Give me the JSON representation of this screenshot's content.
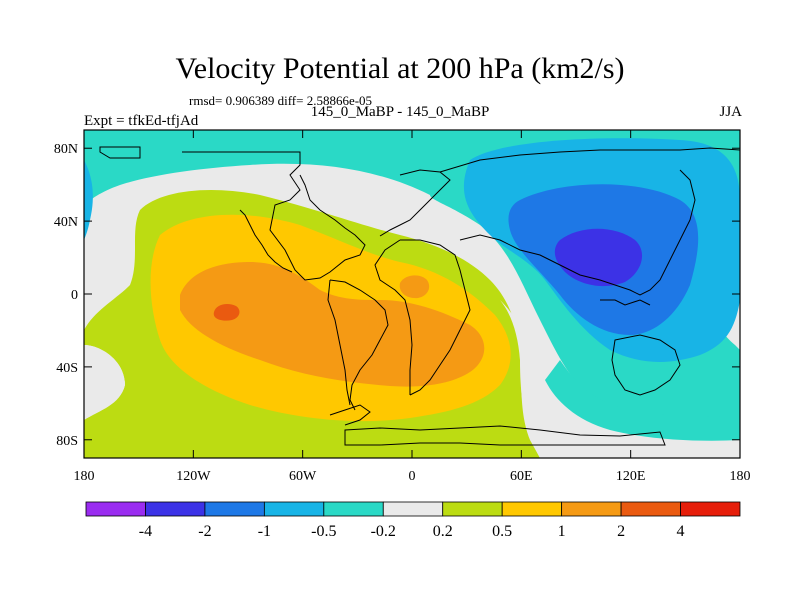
{
  "map": {
    "title": "Velocity Potential at 200 hPa (km2/s)",
    "stats": "rmsd= 0.906389 diff= 2.58866e-05",
    "left_string": "Expt = tfkEd-tfjAd",
    "center_string": "145_0_MaBP - 145_0_MaBP",
    "right_string": "JJA",
    "projection": "cylindrical-equidistant",
    "lon_range": [
      -180,
      180
    ],
    "lat_range": [
      -90,
      90
    ],
    "x_ticks": [
      {
        "lon": -180,
        "label": "180"
      },
      {
        "lon": -120,
        "label": "120W"
      },
      {
        "lon": -60,
        "label": "60W"
      },
      {
        "lon": 0,
        "label": "0"
      },
      {
        "lon": 60,
        "label": "60E"
      },
      {
        "lon": 120,
        "label": "120E"
      },
      {
        "lon": 180,
        "label": "180"
      }
    ],
    "y_ticks": [
      {
        "lat": 80,
        "label": "80N"
      },
      {
        "lat": 40,
        "label": "40N"
      },
      {
        "lat": 0,
        "label": "0"
      },
      {
        "lat": -40,
        "label": "40S"
      },
      {
        "lat": -80,
        "label": "80S"
      }
    ]
  },
  "colorbar": {
    "colors": [
      "#9a2cf0",
      "#3c32e6",
      "#1e78e6",
      "#18b4e6",
      "#2ad9c6",
      "#eaeaea",
      "#bcdc12",
      "#ffc800",
      "#f59a14",
      "#ea5a10",
      "#e61e0a"
    ],
    "labels": [
      "-4",
      "-2",
      "-1",
      "-0.5",
      "-0.2",
      "0.2",
      "0.5",
      "1",
      "2",
      "4"
    ]
  }
}
